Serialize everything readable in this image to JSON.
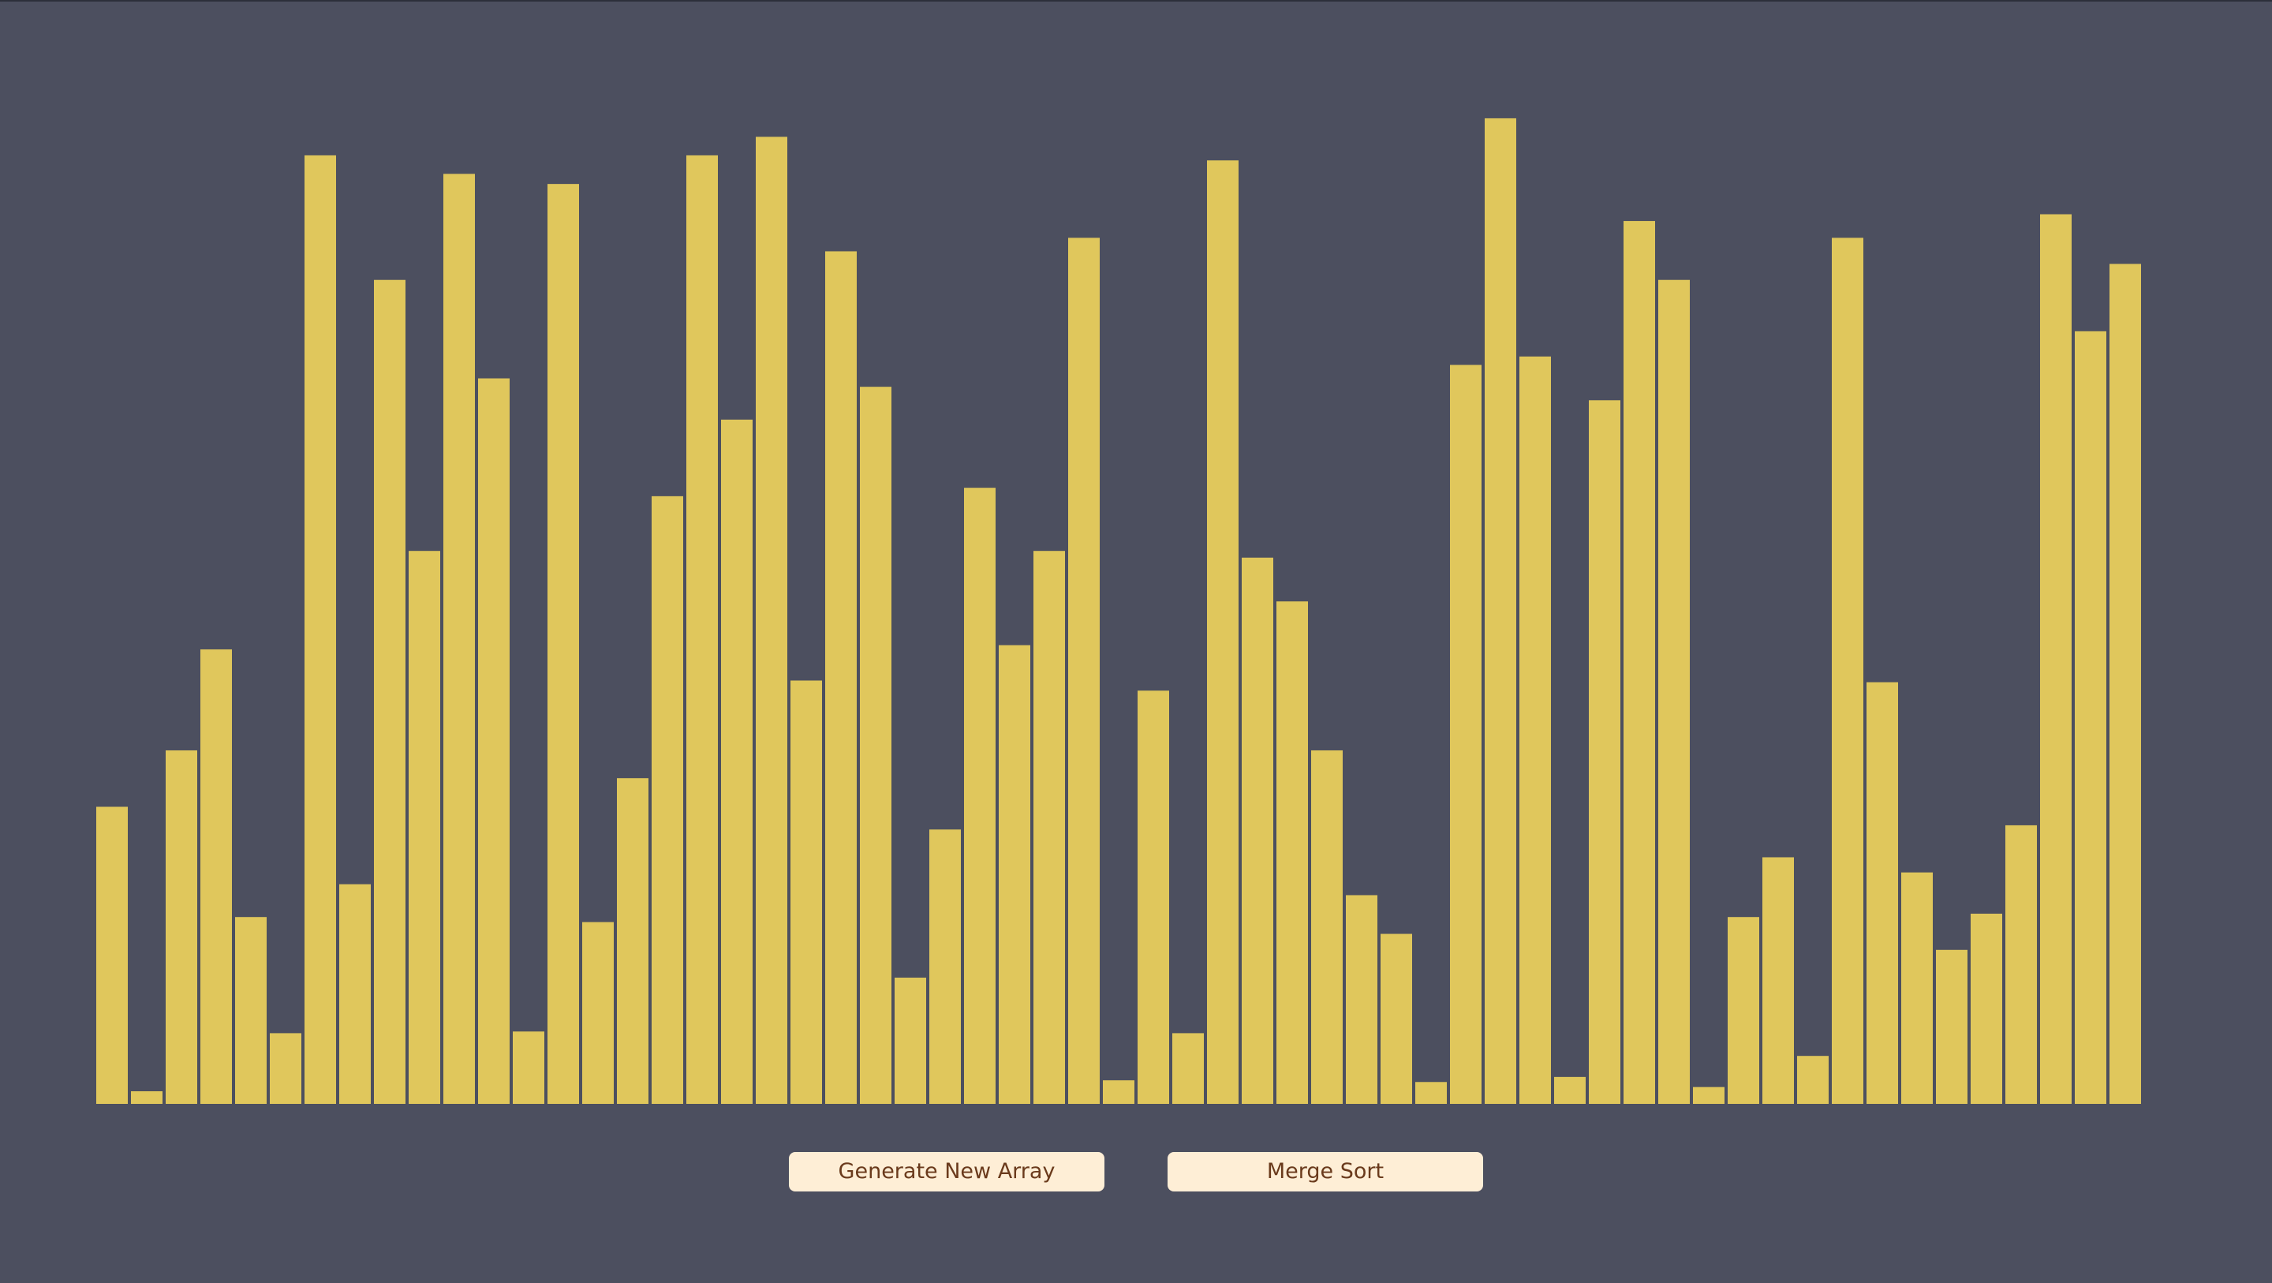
{
  "colors": {
    "background": "#4c4f5f",
    "bar": "#e0c75c",
    "button_bg": "#feeed6",
    "button_text": "#6a3a1c"
  },
  "array": {
    "max_value": 1200,
    "values": [
      353,
      15,
      420,
      540,
      222,
      84,
      1127,
      261,
      979,
      657,
      1105,
      862,
      86,
      1093,
      216,
      387,
      722,
      1127,
      813,
      1149,
      503,
      1013,
      852,
      150,
      326,
      732,
      545,
      657,
      1029,
      28,
      491,
      84,
      1121,
      649,
      597,
      420,
      248,
      202,
      26,
      878,
      1171,
      888,
      32,
      836,
      1049,
      979,
      20,
      222,
      293,
      57,
      1029,
      501,
      275,
      183,
      226,
      331,
      1057,
      918,
      998
    ]
  },
  "controls": {
    "generate_label": "Generate New Array",
    "sort_label": "Merge Sort"
  }
}
